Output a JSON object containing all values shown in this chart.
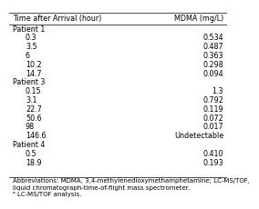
{
  "title_col1": "Time after Arrival (hour)",
  "title_col2": "MDMA (mg/L)",
  "rows": [
    {
      "label": "Patient 1",
      "col1": "",
      "col2": "",
      "is_header": true
    },
    {
      "label": "",
      "col1": "0.3",
      "col2": "0.534",
      "is_header": false
    },
    {
      "label": "",
      "col1": "3.5",
      "col2": "0.487",
      "is_header": false
    },
    {
      "label": "",
      "col1": "6",
      "col2": "0.363",
      "is_header": false
    },
    {
      "label": "",
      "col1": "10.2",
      "col2": "0.298",
      "is_header": false
    },
    {
      "label": "",
      "col1": "14.7",
      "col2": "0.094",
      "is_header": false
    },
    {
      "label": "Patient 3",
      "col1": "",
      "col2": "",
      "is_header": true
    },
    {
      "label": "",
      "col1": "0.15",
      "col2": "1.3",
      "is_header": false
    },
    {
      "label": "",
      "col1": "3.1",
      "col2": "0.792",
      "is_header": false
    },
    {
      "label": "",
      "col1": "22.7",
      "col2": "0.119",
      "is_header": false
    },
    {
      "label": "",
      "col1": "50.6",
      "col2": "0.072",
      "is_header": false
    },
    {
      "label": "",
      "col1": "98",
      "col2": "0.017",
      "is_header": false
    },
    {
      "label": "",
      "col1": "146.6",
      "col2": "Undetectable",
      "is_header": false
    },
    {
      "label": "Patient 4",
      "col1": "",
      "col2": "",
      "is_header": true
    },
    {
      "label": "",
      "col1": "0.5",
      "col2": "0.410",
      "is_header": false
    },
    {
      "label": "",
      "col1": "18.9",
      "col2": "0.193",
      "is_header": false
    }
  ],
  "footnote_lines": [
    "Abbreviations: MDMA, 3,4-methylenedioxymethamphetamine; LC-MS/TOF,",
    "liquid chromatograph-time-of-flight mass spectrometer.",
    "ᵃ LC-MS/TOF analysis."
  ],
  "bg_color": "#ffffff",
  "header_line_color": "#000000",
  "font_size": 5.8,
  "footnote_font_size": 5.0
}
